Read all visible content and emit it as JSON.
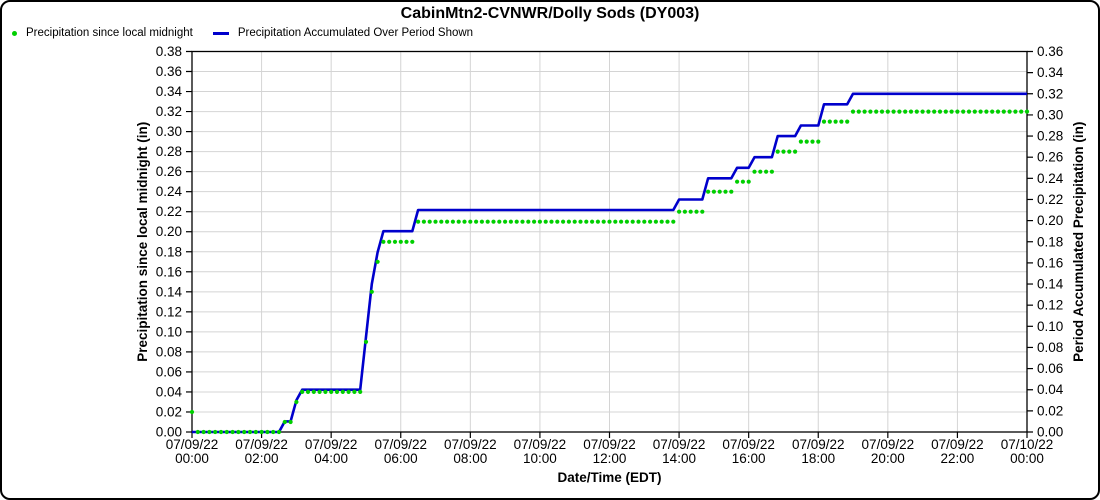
{
  "title": "CabinMtn2-CVNWR/Dolly Sods (DY003)",
  "legend": {
    "items": [
      {
        "label": "Precipitation since local midnight",
        "marker": "dot",
        "color": "#00CF00"
      },
      {
        "label": "Precipitation Accumulated Over Period Shown",
        "marker": "line",
        "color": "#0000CC"
      }
    ]
  },
  "chart_data": {
    "type": "line",
    "title": "CabinMtn2-CVNWR/Dolly Sods (DY003)",
    "background": "#FFFFFF",
    "grid": true,
    "grid_color": "#D4D4D4",
    "frame_color": "#000000",
    "sample_interval_minutes": 10,
    "x_axis": {
      "label": "Date/Time (EDT)",
      "min_hour": 0,
      "max_hour": 24,
      "tick_step_hours": 2,
      "ticks": [
        {
          "date": "07/09/22",
          "time": "00:00"
        },
        {
          "date": "07/09/22",
          "time": "02:00"
        },
        {
          "date": "07/09/22",
          "time": "04:00"
        },
        {
          "date": "07/09/22",
          "time": "06:00"
        },
        {
          "date": "07/09/22",
          "time": "08:00"
        },
        {
          "date": "07/09/22",
          "time": "10:00"
        },
        {
          "date": "07/09/22",
          "time": "12:00"
        },
        {
          "date": "07/09/22",
          "time": "14:00"
        },
        {
          "date": "07/09/22",
          "time": "16:00"
        },
        {
          "date": "07/09/22",
          "time": "18:00"
        },
        {
          "date": "07/09/22",
          "time": "20:00"
        },
        {
          "date": "07/09/22",
          "time": "22:00"
        },
        {
          "date": "07/10/22",
          "time": "00:00"
        }
      ]
    },
    "y_left": {
      "label": "Precipitation since local midnight (in)",
      "min": 0.0,
      "max": 0.38,
      "tick_step": 0.02,
      "tick_labels": [
        "0.38",
        "0.36",
        "0.34",
        "0.32",
        "0.30",
        "0.28",
        "0.26",
        "0.24",
        "0.22",
        "0.20",
        "0.18",
        "0.16",
        "0.14",
        "0.12",
        "0.10",
        "0.08",
        "0.06",
        "0.04",
        "0.02",
        "0.00"
      ]
    },
    "y_right": {
      "label": "Period Accumulated Precipitation (in)",
      "min": 0.0,
      "max": 0.36,
      "tick_step": 0.02,
      "tick_labels": [
        "0.36",
        "0.34",
        "0.32",
        "0.30",
        "0.28",
        "0.26",
        "0.24",
        "0.22",
        "0.20",
        "0.18",
        "0.16",
        "0.14",
        "0.12",
        "0.10",
        "0.08",
        "0.06",
        "0.04",
        "0.02",
        "0.00"
      ]
    },
    "staircase_segments": [
      {
        "start_hour": 0.1667,
        "end_hour": 2.5,
        "value": 0.0
      },
      {
        "start_hour": 2.6667,
        "end_hour": 2.8333,
        "value": 0.01
      },
      {
        "start_hour": 3.0,
        "end_hour": 3.0,
        "value": 0.03
      },
      {
        "start_hour": 3.1667,
        "end_hour": 4.8333,
        "value": 0.04
      },
      {
        "start_hour": 5.0,
        "end_hour": 5.0,
        "value": 0.09
      },
      {
        "start_hour": 5.1667,
        "end_hour": 5.1667,
        "value": 0.14
      },
      {
        "start_hour": 5.3333,
        "end_hour": 5.3333,
        "value": 0.17
      },
      {
        "start_hour": 5.5,
        "end_hour": 6.3333,
        "value": 0.19
      },
      {
        "start_hour": 6.5,
        "end_hour": 13.8333,
        "value": 0.21
      },
      {
        "start_hour": 14.0,
        "end_hour": 14.6667,
        "value": 0.22
      },
      {
        "start_hour": 14.8333,
        "end_hour": 15.5,
        "value": 0.24
      },
      {
        "start_hour": 15.6667,
        "end_hour": 16.0,
        "value": 0.25
      },
      {
        "start_hour": 16.1667,
        "end_hour": 16.6667,
        "value": 0.26
      },
      {
        "start_hour": 16.8333,
        "end_hour": 17.3333,
        "value": 0.28
      },
      {
        "start_hour": 17.5,
        "end_hour": 18.0,
        "value": 0.29
      },
      {
        "start_hour": 18.1667,
        "end_hour": 18.8333,
        "value": 0.31
      },
      {
        "start_hour": 19.0,
        "end_hour": 24.0,
        "value": 0.32
      }
    ],
    "series": [
      {
        "name": "Precipitation since local midnight",
        "type": "scatter",
        "color": "#00CF00",
        "axis": "left",
        "initial_point": {
          "hour": 0.0,
          "value": 0.02
        },
        "uses": "staircase_segments"
      },
      {
        "name": "Precipitation Accumulated Over Period Shown",
        "type": "step-line",
        "color": "#0000CC",
        "axis": "right",
        "initial_point": {
          "hour": 0.0,
          "value": 0.0
        },
        "uses": "staircase_segments",
        "final_value": 0.32
      }
    ]
  }
}
